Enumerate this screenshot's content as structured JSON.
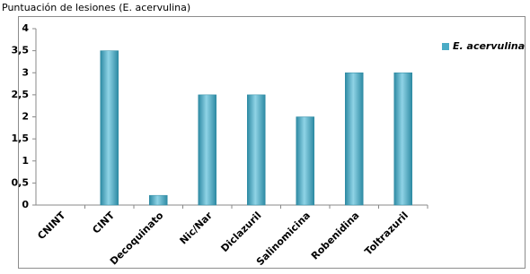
{
  "chart_data": {
    "type": "bar",
    "title": "Puntuación de lesiones (E. acervulina)",
    "categories": [
      "CNINT",
      "CINT",
      "Decoquinato",
      "Nic/Nar",
      "Diclazuril",
      "Salinomicina",
      "Robenidina",
      "Toltrazuril"
    ],
    "series": [
      {
        "name": "E. acervulina",
        "color": "#4bacc6",
        "values": [
          0,
          3.5,
          0.22,
          2.5,
          2.5,
          2,
          3,
          3
        ]
      }
    ],
    "ylim": [
      0,
      4
    ],
    "yticks": [
      0,
      {
        "value": 0.5,
        "label": "0,5"
      },
      1,
      {
        "value": 1.5,
        "label": "1,5"
      },
      2,
      {
        "value": 2.5,
        "label": "2,5"
      },
      3,
      {
        "value": 3.5,
        "label": "3,5"
      },
      4
    ],
    "grid": false,
    "legend": "right"
  }
}
